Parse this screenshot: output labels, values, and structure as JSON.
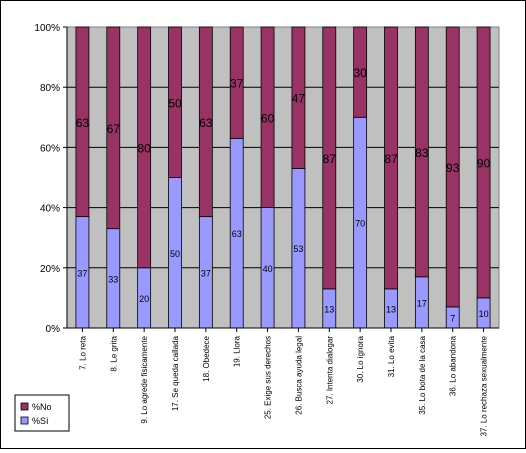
{
  "chart_data": {
    "type": "bar",
    "stacked": true,
    "percent": true,
    "categories": [
      "7. Lo reta",
      "8. Le grita",
      "9. Lo agrede fisicamente",
      "17. Se queda callada",
      "18. Obedece",
      "19. Llora",
      "25. Exige sus derechos",
      "26. Busca ayuda legal",
      "27. Intenta dialogar",
      "30. Lo ignora",
      "31. Lo evita",
      "35. Lo bota de la casa",
      "36. Lo abandona",
      "37. Lo rechaza sexualmente"
    ],
    "series": [
      {
        "name": "%Sí",
        "values": [
          37,
          33,
          20,
          50,
          37,
          63,
          40,
          53,
          13,
          70,
          13,
          17,
          7,
          10
        ]
      },
      {
        "name": "%No",
        "values": [
          63,
          67,
          80,
          50,
          63,
          37,
          60,
          47,
          87,
          30,
          87,
          83,
          93,
          90
        ]
      }
    ],
    "ylim": [
      0,
      100
    ],
    "yticks": [
      "0%",
      "20%",
      "40%",
      "60%",
      "80%",
      "100%"
    ],
    "grid": true,
    "legend_position": "bottom-left",
    "colors": {
      "si": "#9999ff",
      "no": "#993366",
      "plot_bg": "#c0c0c0",
      "gridline": "#000000"
    }
  }
}
